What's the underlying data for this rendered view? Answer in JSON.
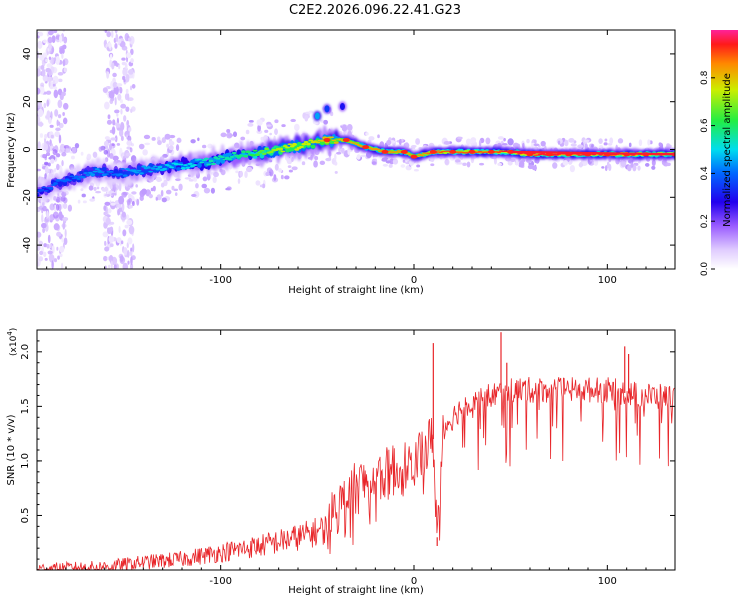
{
  "title": "C2E2.2026.096.22.41.G23",
  "colors": {
    "snr_line": "#e8262a",
    "spec_low": "#cc99ff",
    "spec_mid": "#2a00e6",
    "spec_green": "#22dd44",
    "spec_high": "#e8102a"
  },
  "chart_data": [
    {
      "type": "heatmap",
      "name": "spectrogram",
      "xlabel": "Height of straight line (km)",
      "ylabel": "Frequency (Hz)",
      "xlim": [
        -195,
        135
      ],
      "ylim": [
        -50,
        50
      ],
      "x_ticks": [
        -100,
        0,
        100
      ],
      "y_ticks": [
        -40,
        -20,
        0,
        20,
        40
      ],
      "x_tick_labels": [
        "-100",
        "0",
        "100"
      ],
      "y_tick_labels": [
        "-40",
        "-20",
        "0",
        "20",
        "40"
      ],
      "colorbar": {
        "label": "Normalized spectral amplitude",
        "range": [
          0,
          1
        ],
        "ticks": [
          0.0,
          0.2,
          0.4,
          0.6,
          0.8
        ],
        "tick_labels": [
          "0.0",
          "0.2",
          "0.4",
          "0.6",
          "0.8"
        ]
      },
      "ridge": [
        {
          "x": -195,
          "f": -18,
          "amp": 0.35
        },
        {
          "x": -185,
          "f": -14,
          "amp": 0.4
        },
        {
          "x": -175,
          "f": -12,
          "amp": 0.4
        },
        {
          "x": -165,
          "f": -9,
          "amp": 0.45
        },
        {
          "x": -155,
          "f": -10,
          "amp": 0.4
        },
        {
          "x": -145,
          "f": -9,
          "amp": 0.45
        },
        {
          "x": -135,
          "f": -8,
          "amp": 0.45
        },
        {
          "x": -125,
          "f": -7,
          "amp": 0.5
        },
        {
          "x": -115,
          "f": -6,
          "amp": 0.5
        },
        {
          "x": -105,
          "f": -5,
          "amp": 0.55
        },
        {
          "x": -95,
          "f": -3,
          "amp": 0.55
        },
        {
          "x": -85,
          "f": -2,
          "amp": 0.6
        },
        {
          "x": -75,
          "f": -1,
          "amp": 0.7
        },
        {
          "x": -65,
          "f": 1,
          "amp": 0.75
        },
        {
          "x": -55,
          "f": 2,
          "amp": 0.75
        },
        {
          "x": -45,
          "f": 4,
          "amp": 0.8
        },
        {
          "x": -35,
          "f": 4,
          "amp": 0.8
        },
        {
          "x": -25,
          "f": 1,
          "amp": 0.85
        },
        {
          "x": -15,
          "f": -1,
          "amp": 0.85
        },
        {
          "x": -5,
          "f": -1,
          "amp": 0.85
        },
        {
          "x": 0,
          "f": -3,
          "amp": 0.8
        },
        {
          "x": 10,
          "f": -1,
          "amp": 0.9
        },
        {
          "x": 20,
          "f": -1,
          "amp": 0.9
        },
        {
          "x": 30,
          "f": -1,
          "amp": 0.9
        },
        {
          "x": 40,
          "f": -1,
          "amp": 0.9
        },
        {
          "x": 50,
          "f": -1,
          "amp": 0.95
        },
        {
          "x": 60,
          "f": -2,
          "amp": 0.95
        },
        {
          "x": 70,
          "f": -2,
          "amp": 0.95
        },
        {
          "x": 80,
          "f": -2,
          "amp": 0.95
        },
        {
          "x": 90,
          "f": -2,
          "amp": 0.95
        },
        {
          "x": 100,
          "f": -2,
          "amp": 0.95
        },
        {
          "x": 110,
          "f": -2,
          "amp": 0.95
        },
        {
          "x": 120,
          "f": -2,
          "amp": 0.95
        },
        {
          "x": 135,
          "f": -2,
          "amp": 0.95
        }
      ],
      "features": [
        {
          "x": -50,
          "f": 14,
          "amp": 0.45,
          "label": "upper branch"
        },
        {
          "x": -45,
          "f": 17,
          "amp": 0.35,
          "label": "upper branch"
        },
        {
          "x": -37,
          "f": 18,
          "amp": 0.3,
          "label": "upper branch"
        }
      ],
      "noise_bands": [
        {
          "x_from": -195,
          "x_to": -180,
          "f_from": -50,
          "f_to": 50
        },
        {
          "x_from": -160,
          "x_to": -145,
          "f_from": -50,
          "f_to": 50
        }
      ]
    },
    {
      "type": "line",
      "name": "snr",
      "xlabel": "Height of straight line (km)",
      "ylabel": "SNR (10 * v/v)",
      "y_multiplier": "(x10",
      "y_multiplier_exp": "4",
      "y_multiplier_close": ")",
      "xlim": [
        -195,
        135
      ],
      "ylim": [
        0,
        2.2
      ],
      "x_ticks": [
        -100,
        0,
        100
      ],
      "y_ticks": [
        0.5,
        1.0,
        1.5,
        2.0
      ],
      "x_tick_labels": [
        "-100",
        "0",
        "100"
      ],
      "y_tick_labels": [
        "0.5",
        "1.0",
        "1.5",
        "2.0"
      ],
      "trend": {
        "x": [
          -195,
          -160,
          -140,
          -120,
          -100,
          -80,
          -60,
          -45,
          -40,
          -30,
          -20,
          -10,
          0,
          5,
          10,
          12,
          15,
          20,
          25,
          30,
          40,
          50,
          60,
          80,
          100,
          110,
          120,
          130,
          135
        ],
        "y": [
          0.01,
          0.03,
          0.07,
          0.1,
          0.16,
          0.22,
          0.3,
          0.38,
          0.55,
          0.75,
          0.85,
          0.9,
          1.0,
          1.1,
          1.2,
          0.3,
          1.3,
          1.4,
          1.5,
          1.55,
          1.6,
          1.65,
          1.65,
          1.65,
          1.65,
          1.62,
          1.6,
          1.58,
          1.6
        ]
      },
      "spikes": [
        {
          "x": 10,
          "y": 2.08
        },
        {
          "x": 45,
          "y": 2.18
        },
        {
          "x": 48,
          "y": 1.9
        },
        {
          "x": 109,
          "y": 2.05
        },
        {
          "x": 111,
          "y": 1.98
        },
        {
          "x": 12,
          "y": 0.22
        }
      ]
    }
  ]
}
